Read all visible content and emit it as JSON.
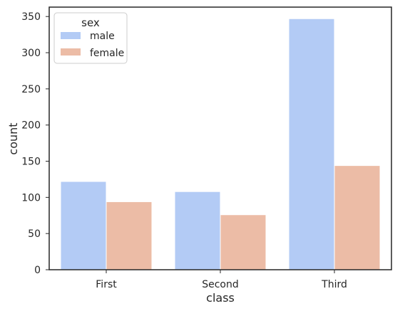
{
  "chart_data": {
    "type": "bar",
    "xlabel": "class",
    "ylabel": "count",
    "categories": [
      "First",
      "Second",
      "Third"
    ],
    "ylim": [
      0,
      363
    ],
    "yticks": [
      0,
      50,
      100,
      150,
      200,
      250,
      300,
      350
    ],
    "grid": false,
    "legend": {
      "title": "sex",
      "placement": "top-left"
    },
    "series": [
      {
        "name": "male",
        "values": [
          122,
          108,
          347
        ],
        "color": "#b3cbf5"
      },
      {
        "name": "female",
        "values": [
          94,
          76,
          144
        ],
        "color": "#ecbca6"
      }
    ]
  }
}
